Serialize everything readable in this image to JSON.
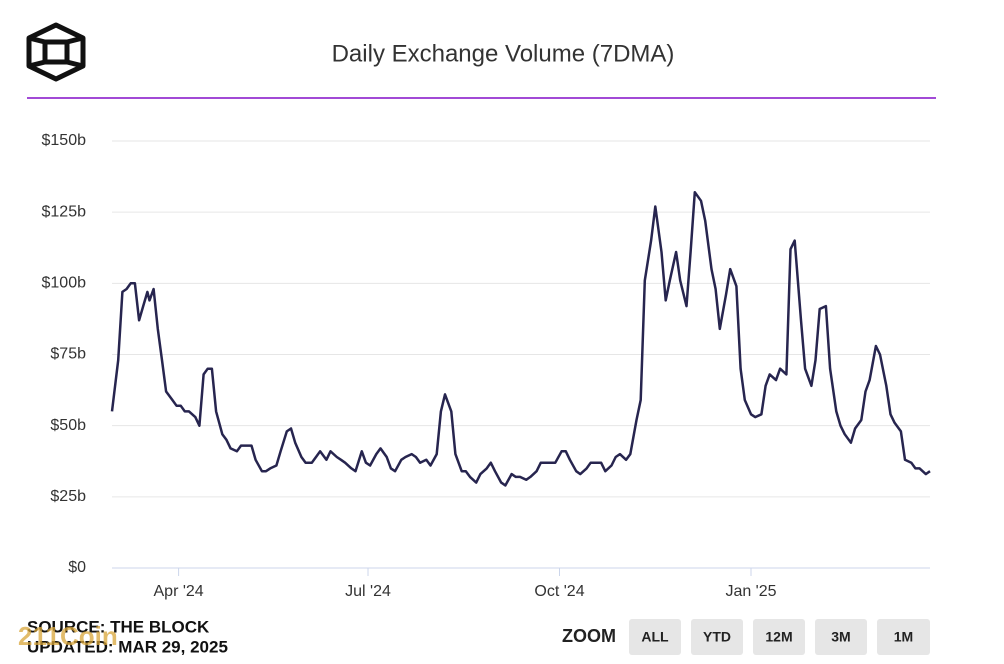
{
  "chart_data": {
    "type": "line",
    "title": "Daily Exchange Volume (7DMA)",
    "series": [
      {
        "color": "#27254f",
        "x": [
          0,
          3,
          5,
          7,
          9,
          11,
          13,
          15,
          17,
          18,
          20,
          22,
          24,
          26,
          29,
          31,
          33,
          35,
          37,
          40,
          42,
          44,
          46,
          48,
          50,
          53,
          55,
          57,
          60,
          62,
          64,
          67,
          69,
          72,
          74,
          76,
          79,
          81,
          84,
          86,
          88,
          91,
          93,
          96,
          98,
          100,
          103,
          105,
          108,
          110,
          112,
          115,
          117,
          120,
          122,
          124,
          127,
          129,
          132,
          134,
          136,
          139,
          141,
          144,
          146,
          148,
          151,
          153,
          156,
          158,
          160,
          163,
          165,
          168,
          170,
          172,
          175,
          177,
          180,
          182,
          184,
          187,
          189,
          192,
          194,
          196,
          199,
          201,
          204,
          206,
          208,
          211,
          213,
          216,
          218,
          220,
          223,
          225,
          228,
          230,
          232,
          235,
          237,
          240,
          242,
          244,
          247,
          249,
          252,
          254,
          256,
          259,
          261,
          264,
          266,
          268,
          271,
          273,
          276,
          278,
          280,
          283,
          285,
          288,
          290,
          292,
          295,
          297,
          300,
          302,
          304,
          307,
          309,
          312,
          314,
          316,
          319,
          321,
          324,
          326,
          328,
          331,
          333,
          336,
          338,
          340,
          343,
          345,
          348,
          350,
          352,
          355,
          357,
          360,
          362,
          364,
          367,
          369,
          372,
          374,
          376,
          379,
          381,
          384,
          386,
          388,
          391,
          393
        ],
        "values": [
          55,
          73,
          97,
          98,
          100,
          100,
          87,
          92,
          97,
          94,
          98,
          84,
          73,
          62,
          59,
          57,
          57,
          55,
          55,
          53,
          50,
          68,
          70,
          70,
          55,
          47,
          45,
          42,
          41,
          43,
          43,
          43,
          38,
          34,
          34,
          35,
          36,
          41,
          48,
          49,
          44,
          39,
          37,
          37,
          39,
          41,
          38,
          41,
          39,
          38,
          37,
          35,
          34,
          41,
          37,
          36,
          40,
          42,
          39,
          35,
          34,
          38,
          39,
          40,
          39,
          37,
          38,
          36,
          40,
          55,
          61,
          55,
          40,
          34,
          34,
          32,
          30,
          33,
          35,
          37,
          34,
          30,
          29,
          33,
          32,
          32,
          31,
          32,
          34,
          37,
          37,
          37,
          37,
          41,
          41,
          38,
          34,
          33,
          35,
          37,
          37,
          37,
          34,
          36,
          39,
          40,
          38,
          40,
          52,
          59,
          101,
          115,
          127,
          111,
          94,
          101,
          111,
          101,
          92,
          111,
          132,
          129,
          122,
          105,
          98,
          84,
          96,
          105,
          99,
          70,
          59,
          54,
          53,
          54,
          64,
          68,
          66,
          70,
          68,
          112,
          115,
          87,
          70,
          64,
          73,
          91,
          92,
          70,
          55,
          50,
          47,
          44,
          49,
          52,
          62,
          66,
          78,
          75,
          64,
          54,
          51,
          48,
          38,
          37,
          35,
          35,
          33,
          34
        ]
      }
    ],
    "xlim": [
      0,
      393
    ],
    "xticks": [
      {
        "value": 32,
        "label": "Apr '24"
      },
      {
        "value": 123,
        "label": "Jul '24"
      },
      {
        "value": 215,
        "label": "Oct '24"
      },
      {
        "value": 307,
        "label": "Jan '25"
      }
    ],
    "ylim": [
      0,
      150
    ],
    "yticks": [
      {
        "value": 0,
        "label": "$0"
      },
      {
        "value": 25,
        "label": "$25b"
      },
      {
        "value": 50,
        "label": "$50b"
      },
      {
        "value": 75,
        "label": "$75b"
      },
      {
        "value": 100,
        "label": "$100b"
      },
      {
        "value": 125,
        "label": "$125b"
      },
      {
        "value": 150,
        "label": "$150b"
      }
    ],
    "grid": true
  },
  "footer": {
    "source": "SOURCE: THE BLOCK",
    "updated": "UPDATED: MAR 29, 2025",
    "watermark": "211Coin"
  },
  "zoom": {
    "label": "ZOOM",
    "buttons": [
      "ALL",
      "YTD",
      "12M",
      "3M",
      "1M"
    ]
  }
}
